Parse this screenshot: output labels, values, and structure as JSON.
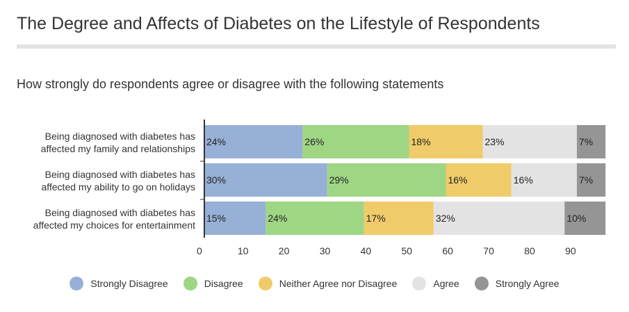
{
  "header": {
    "title": "The Degree and Affects of Diabetes on the Lifestyle of Respondents"
  },
  "chart_data": {
    "type": "bar",
    "orientation": "horizontal",
    "stacked": true,
    "title": "How strongly do respondents agree or disagree with the following statements",
    "xlabel": "",
    "ylabel": "",
    "xlim": [
      0,
      100
    ],
    "xticks": [
      0,
      10,
      20,
      30,
      40,
      50,
      60,
      70,
      80,
      90
    ],
    "categories": [
      [
        "Being diagnosed with diabetes has",
        "affected my family and relationships"
      ],
      [
        "Being diagnosed with diabetes has",
        "affected my ability to go on holidays"
      ],
      [
        "Being diagnosed with diabetes has",
        "affected my choices for entertainment"
      ]
    ],
    "series": [
      {
        "name": "Strongly Disagree",
        "color": "#97b0d7",
        "values": [
          24,
          30,
          15
        ]
      },
      {
        "name": "Disagree",
        "color": "#9ed684",
        "values": [
          26,
          29,
          24
        ]
      },
      {
        "name": "Neither Agree nor Disagree",
        "color": "#f0cb6a",
        "values": [
          18,
          16,
          17
        ]
      },
      {
        "name": "Agree",
        "color": "#e3e3e3",
        "values": [
          23,
          16,
          32
        ]
      },
      {
        "name": "Strongly Agree",
        "color": "#959595",
        "values": [
          7,
          7,
          10
        ]
      }
    ],
    "value_suffix": "%",
    "grid": false,
    "legend_position": "bottom"
  }
}
